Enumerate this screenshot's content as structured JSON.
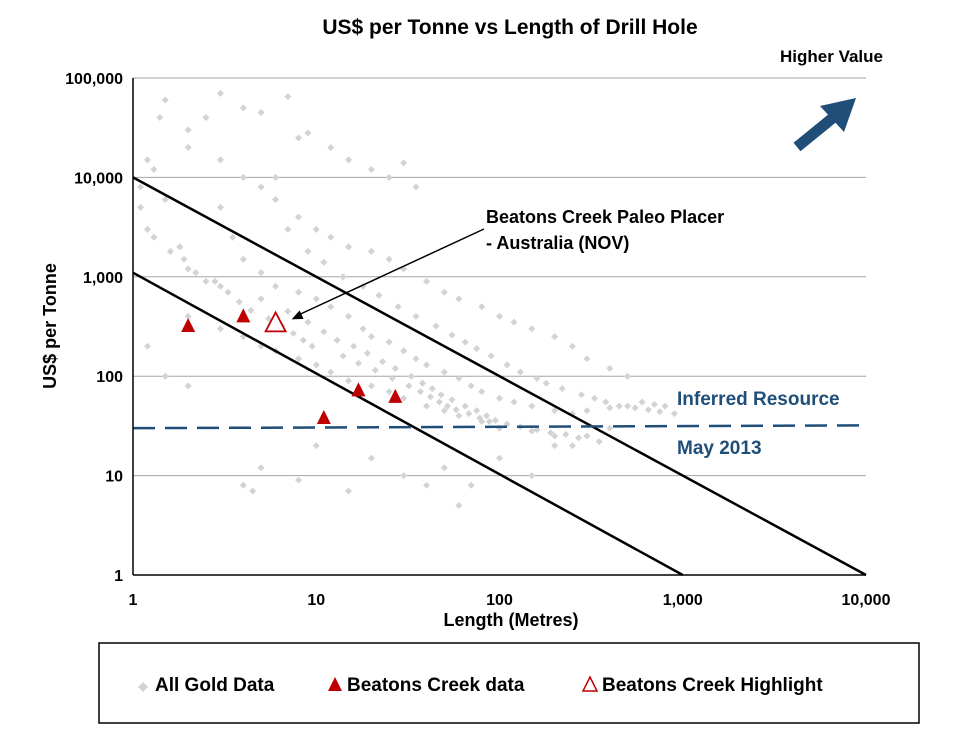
{
  "colors": {
    "background": "#ffffff",
    "gridline": "#a6a6a6",
    "gold_points": "#d3d3d3",
    "beatons_red": "#c00000",
    "dashed_line": "#1f4e79",
    "arrow": "#1f4e79",
    "text": "#000000",
    "annotation_blue": "#1f4e79"
  },
  "chart_data": {
    "type": "scatter",
    "title": "US$ per Tonne vs Length of Drill Hole",
    "xlabel": "Length (Metres)",
    "ylabel": "US$ per Tonne",
    "x_scale": "log",
    "y_scale": "log",
    "xlim": [
      1,
      10000
    ],
    "ylim": [
      1,
      100000
    ],
    "x_ticks": [
      "1",
      "10",
      "100",
      "1,000",
      "10,000"
    ],
    "y_ticks": [
      "1",
      "10",
      "100",
      "1,000",
      "10,000",
      "100,000"
    ],
    "grid": "horizontal",
    "series": [
      {
        "name": "All Gold Data",
        "marker": "diamond",
        "points": [
          [
            1.3,
            12000
          ],
          [
            1.5,
            6000
          ],
          [
            1.2,
            3000
          ],
          [
            1.8,
            2000
          ],
          [
            2,
            1200
          ],
          [
            2.5,
            900
          ],
          [
            3,
            5000
          ],
          [
            3.5,
            2500
          ],
          [
            4,
            1500
          ],
          [
            5,
            1100
          ],
          [
            6,
            800
          ],
          [
            8,
            700
          ],
          [
            10,
            600
          ],
          [
            12,
            500
          ],
          [
            15,
            400
          ],
          [
            18,
            300
          ],
          [
            20,
            250
          ],
          [
            25,
            220
          ],
          [
            30,
            180
          ],
          [
            35,
            150
          ],
          [
            40,
            130
          ],
          [
            50,
            110
          ],
          [
            60,
            95
          ],
          [
            70,
            80
          ],
          [
            80,
            70
          ],
          [
            100,
            60
          ],
          [
            120,
            55
          ],
          [
            150,
            50
          ],
          [
            200,
            45
          ],
          [
            250,
            42
          ],
          [
            300,
            45
          ],
          [
            400,
            48
          ],
          [
            500,
            50
          ],
          [
            600,
            55
          ],
          [
            700,
            52
          ],
          [
            800,
            50
          ],
          [
            2,
            400
          ],
          [
            3,
            300
          ],
          [
            4,
            250
          ],
          [
            5,
            200
          ],
          [
            6,
            180
          ],
          [
            8,
            150
          ],
          [
            10,
            130
          ],
          [
            12,
            110
          ],
          [
            15,
            90
          ],
          [
            20,
            80
          ],
          [
            25,
            70
          ],
          [
            30,
            60
          ],
          [
            40,
            50
          ],
          [
            50,
            45
          ],
          [
            60,
            40
          ],
          [
            80,
            35
          ],
          [
            100,
            30
          ],
          [
            150,
            28
          ],
          [
            200,
            25
          ],
          [
            2,
            20000
          ],
          [
            3,
            15000
          ],
          [
            4,
            10000
          ],
          [
            5,
            8000
          ],
          [
            6,
            6000
          ],
          [
            8,
            4000
          ],
          [
            10,
            3000
          ],
          [
            12,
            2500
          ],
          [
            15,
            2000
          ],
          [
            20,
            1800
          ],
          [
            25,
            1500
          ],
          [
            30,
            1200
          ],
          [
            40,
            900
          ],
          [
            50,
            700
          ],
          [
            60,
            600
          ],
          [
            80,
            500
          ],
          [
            100,
            400
          ],
          [
            120,
            350
          ],
          [
            150,
            300
          ],
          [
            200,
            250
          ],
          [
            250,
            200
          ],
          [
            300,
            150
          ],
          [
            400,
            120
          ],
          [
            500,
            100
          ],
          [
            1.5,
            60000
          ],
          [
            2.5,
            40000
          ],
          [
            4,
            50000
          ],
          [
            5,
            45000
          ],
          [
            7,
            65000
          ],
          [
            8,
            25000
          ],
          [
            9,
            28000
          ],
          [
            12,
            20000
          ],
          [
            15,
            15000
          ],
          [
            20,
            12000
          ],
          [
            25,
            10000
          ],
          [
            30,
            14000
          ],
          [
            35,
            8000
          ],
          [
            1.2,
            200
          ],
          [
            1.5,
            100
          ],
          [
            2,
            80
          ],
          [
            4,
            8
          ],
          [
            4.5,
            7
          ],
          [
            5,
            12
          ],
          [
            8,
            9
          ],
          [
            10,
            20
          ],
          [
            15,
            7
          ],
          [
            20,
            15
          ],
          [
            30,
            10
          ],
          [
            40,
            8
          ],
          [
            50,
            12
          ],
          [
            60,
            5
          ],
          [
            70,
            8
          ],
          [
            100,
            15
          ],
          [
            150,
            10
          ],
          [
            200,
            20
          ],
          [
            250,
            20
          ],
          [
            300,
            25
          ],
          [
            350,
            22
          ],
          [
            400,
            30
          ],
          [
            1.1,
            5000
          ],
          [
            1.1,
            8000
          ],
          [
            1.2,
            15000
          ],
          [
            1.4,
            40000
          ],
          [
            2,
            30000
          ],
          [
            3,
            70000
          ],
          [
            6,
            10000
          ],
          [
            7,
            3000
          ],
          [
            9,
            1800
          ],
          [
            11,
            1400
          ],
          [
            14,
            1000
          ],
          [
            18,
            800
          ],
          [
            22,
            650
          ],
          [
            28,
            500
          ],
          [
            35,
            400
          ],
          [
            45,
            320
          ],
          [
            55,
            260
          ],
          [
            65,
            220
          ],
          [
            75,
            190
          ],
          [
            90,
            160
          ],
          [
            110,
            130
          ],
          [
            130,
            110
          ],
          [
            160,
            95
          ],
          [
            180,
            85
          ],
          [
            220,
            75
          ],
          [
            280,
            65
          ],
          [
            330,
            60
          ],
          [
            380,
            55
          ],
          [
            450,
            50
          ],
          [
            550,
            48
          ],
          [
            650,
            46
          ],
          [
            750,
            44
          ],
          [
            900,
            42
          ],
          [
            3,
            800
          ],
          [
            5,
            600
          ],
          [
            7,
            450
          ],
          [
            9,
            350
          ],
          [
            11,
            280
          ],
          [
            13,
            230
          ],
          [
            16,
            200
          ],
          [
            19,
            170
          ],
          [
            23,
            140
          ],
          [
            27,
            120
          ],
          [
            33,
            100
          ],
          [
            38,
            85
          ],
          [
            43,
            75
          ],
          [
            48,
            65
          ],
          [
            55,
            58
          ],
          [
            65,
            50
          ],
          [
            75,
            45
          ],
          [
            85,
            40
          ],
          [
            95,
            36
          ],
          [
            110,
            33
          ],
          [
            130,
            31
          ],
          [
            160,
            29
          ],
          [
            190,
            27
          ],
          [
            230,
            26
          ],
          [
            270,
            24
          ],
          [
            1.3,
            2500
          ],
          [
            1.6,
            1800
          ],
          [
            1.9,
            1500
          ],
          [
            2.2,
            1100
          ],
          [
            2.8,
            900
          ],
          [
            3.3,
            700
          ],
          [
            3.8,
            560
          ],
          [
            4.4,
            460
          ],
          [
            5.5,
            380
          ],
          [
            6.5,
            320
          ],
          [
            7.5,
            270
          ],
          [
            8.5,
            230
          ],
          [
            9.5,
            200
          ],
          [
            14,
            160
          ],
          [
            17,
            135
          ],
          [
            21,
            115
          ],
          [
            26,
            95
          ],
          [
            32,
            80
          ],
          [
            37,
            70
          ],
          [
            42,
            62
          ],
          [
            47,
            55
          ],
          [
            52,
            50
          ],
          [
            58,
            46
          ],
          [
            68,
            42
          ],
          [
            78,
            38
          ],
          [
            88,
            35
          ]
        ]
      },
      {
        "name": "Beatons Creek data",
        "marker": "filled-triangle",
        "points": [
          [
            2,
            320
          ],
          [
            4,
            400
          ],
          [
            11,
            38
          ],
          [
            17,
            72
          ],
          [
            27,
            62
          ]
        ]
      },
      {
        "name": "Beatons Creek Highlight",
        "marker": "open-triangle",
        "points": [
          [
            6,
            340
          ]
        ]
      }
    ],
    "reference_lines": [
      {
        "from": [
          1,
          10000
        ],
        "to": [
          10000,
          1
        ],
        "style": "solid"
      },
      {
        "from": [
          1,
          1100
        ],
        "to": [
          1000,
          1
        ],
        "style": "solid"
      },
      {
        "from": [
          1,
          30
        ],
        "to": [
          10000,
          32
        ],
        "style": "dashed"
      }
    ],
    "annotations": {
      "callout": [
        "Beatons Creek Paleo Placer",
        "- Australia (NOV)"
      ],
      "dashed_label_top": "Inferred Resource",
      "dashed_label_bottom": "May 2013",
      "corner_label": "Higher Value"
    },
    "legend": {
      "placement": "bottom",
      "entries": [
        "All Gold Data",
        "Beatons Creek data",
        "Beatons Creek Highlight"
      ]
    }
  }
}
